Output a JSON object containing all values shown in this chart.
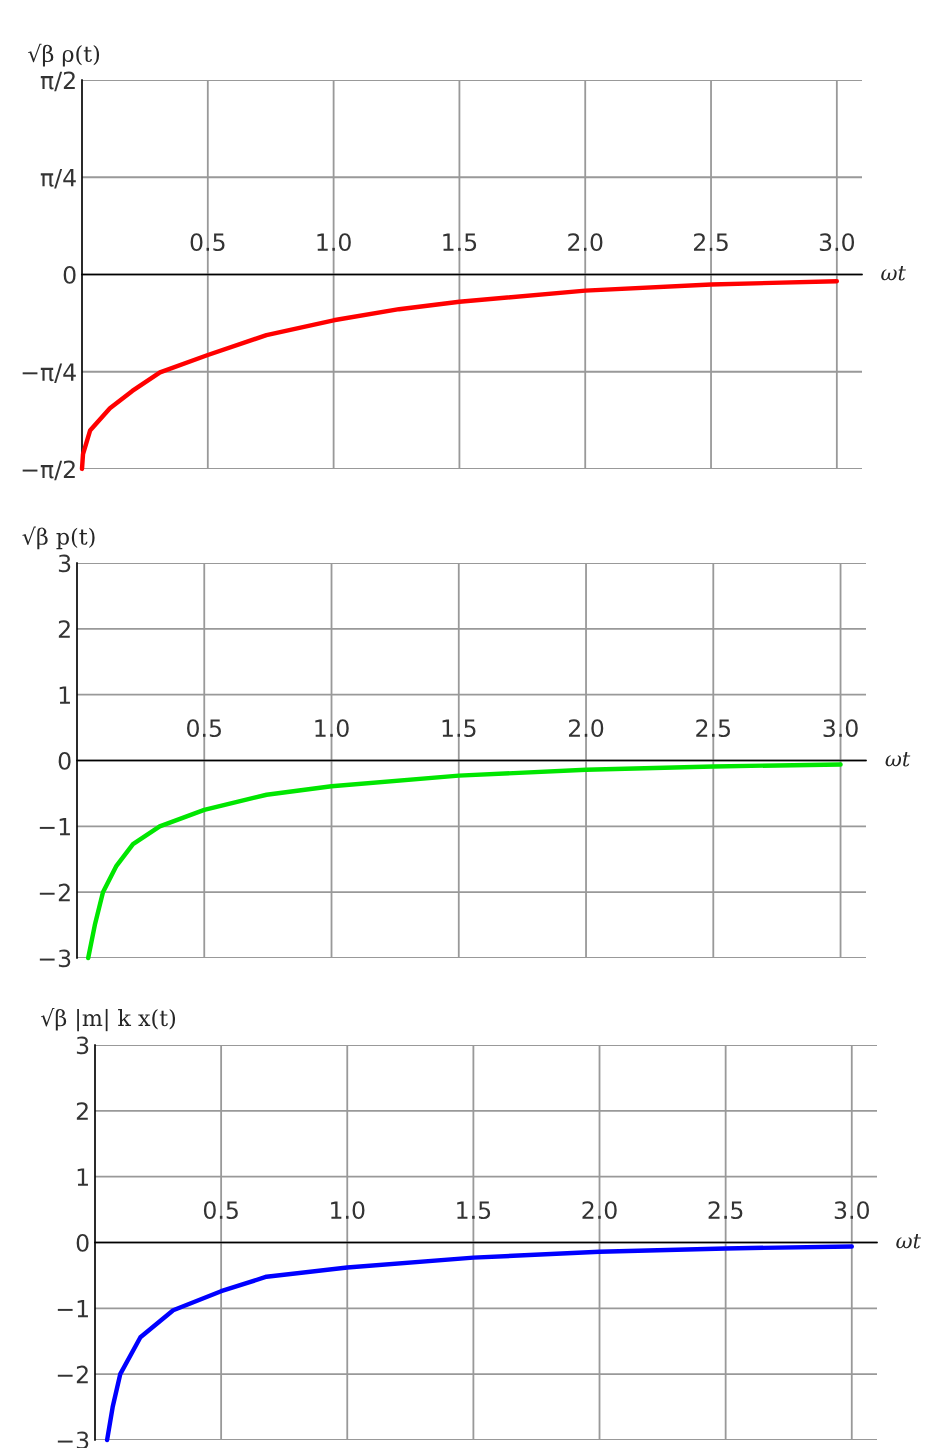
{
  "chart_data": [
    {
      "type": "line",
      "ylabel": "√β ρ(t)",
      "xlabel": "ωt",
      "x": [
        0,
        0.004,
        0.032,
        0.111,
        0.2,
        0.31,
        0.5,
        0.733,
        1.0,
        1.26,
        1.5,
        2.0,
        2.5,
        3.0
      ],
      "series": [
        {
          "color": "#ff0000",
          "values": [
            -1.57,
            -1.45,
            -1.26,
            -1.08,
            -0.94,
            -0.79,
            -0.65,
            -0.49,
            -0.37,
            -0.28,
            -0.22,
            -0.13,
            -0.08,
            -0.055
          ]
        }
      ],
      "xlim": [
        0,
        3.1
      ],
      "ylim": [
        -1.5708,
        1.5708
      ],
      "xticks": [
        0.5,
        {
          "value": 1.0,
          "label": "1.0"
        },
        1.5,
        {
          "value": 2.0,
          "label": "2.0"
        },
        2.5,
        {
          "value": 3.0,
          "label": "3.0"
        }
      ],
      "yticks": [
        {
          "value": -1.5708,
          "label": "−π/2"
        },
        {
          "value": -0.7854,
          "label": "−π/4"
        },
        0,
        {
          "value": 0.7854,
          "label": "π/4"
        },
        {
          "value": 1.5708,
          "label": "π/2"
        }
      ],
      "grid": true,
      "marker": "none",
      "line_style": "solid"
    },
    {
      "type": "line",
      "ylabel": "√β p(t)",
      "xlabel": "ωt",
      "x": [
        0.044,
        0.07,
        0.102,
        0.155,
        0.22,
        0.325,
        0.5,
        0.745,
        1.0,
        1.5,
        2.0,
        2.5,
        3.0
      ],
      "series": [
        {
          "color": "#00e600",
          "values": [
            -3,
            -2.5,
            -2.0,
            -1.6,
            -1.27,
            -1.0,
            -0.75,
            -0.52,
            -0.39,
            -0.23,
            -0.14,
            -0.09,
            -0.06
          ]
        }
      ],
      "xlim": [
        0,
        3.1
      ],
      "ylim": [
        -3,
        3
      ],
      "xticks": [
        0.5,
        {
          "value": 1.0,
          "label": "1.0"
        },
        1.5,
        {
          "value": 2.0,
          "label": "2.0"
        },
        2.5,
        {
          "value": 3.0,
          "label": "3.0"
        }
      ],
      "yticks": [
        {
          "value": -3,
          "label": "−3"
        },
        {
          "value": -2,
          "label": "−2"
        },
        {
          "value": -1,
          "label": "−1"
        },
        0,
        1,
        2,
        3
      ],
      "grid": true,
      "marker": "none",
      "line_style": "solid"
    },
    {
      "type": "line",
      "ylabel": "√β |m| k x(t)",
      "xlabel": "ωt",
      "x": [
        0.048,
        0.07,
        0.1,
        0.18,
        0.31,
        0.5,
        0.68,
        1.0,
        1.5,
        2.0,
        2.5,
        3.0
      ],
      "series": [
        {
          "color": "#0000ff",
          "values": [
            -3,
            -2.5,
            -2.0,
            -1.44,
            -1.03,
            -0.74,
            -0.52,
            -0.38,
            -0.23,
            -0.14,
            -0.09,
            -0.06
          ]
        }
      ],
      "xlim": [
        0,
        3.1
      ],
      "ylim": [
        -3,
        3
      ],
      "xticks": [
        0.5,
        {
          "value": 1.0,
          "label": "1.0"
        },
        1.5,
        {
          "value": 2.0,
          "label": "2.0"
        },
        2.5,
        {
          "value": 3.0,
          "label": "3.0"
        }
      ],
      "yticks": [
        {
          "value": -3,
          "label": "−3"
        },
        {
          "value": -2,
          "label": "−2"
        },
        {
          "value": -1,
          "label": "−1"
        },
        0,
        1,
        2,
        3
      ],
      "grid": true,
      "marker": "none",
      "line_style": "solid"
    }
  ]
}
